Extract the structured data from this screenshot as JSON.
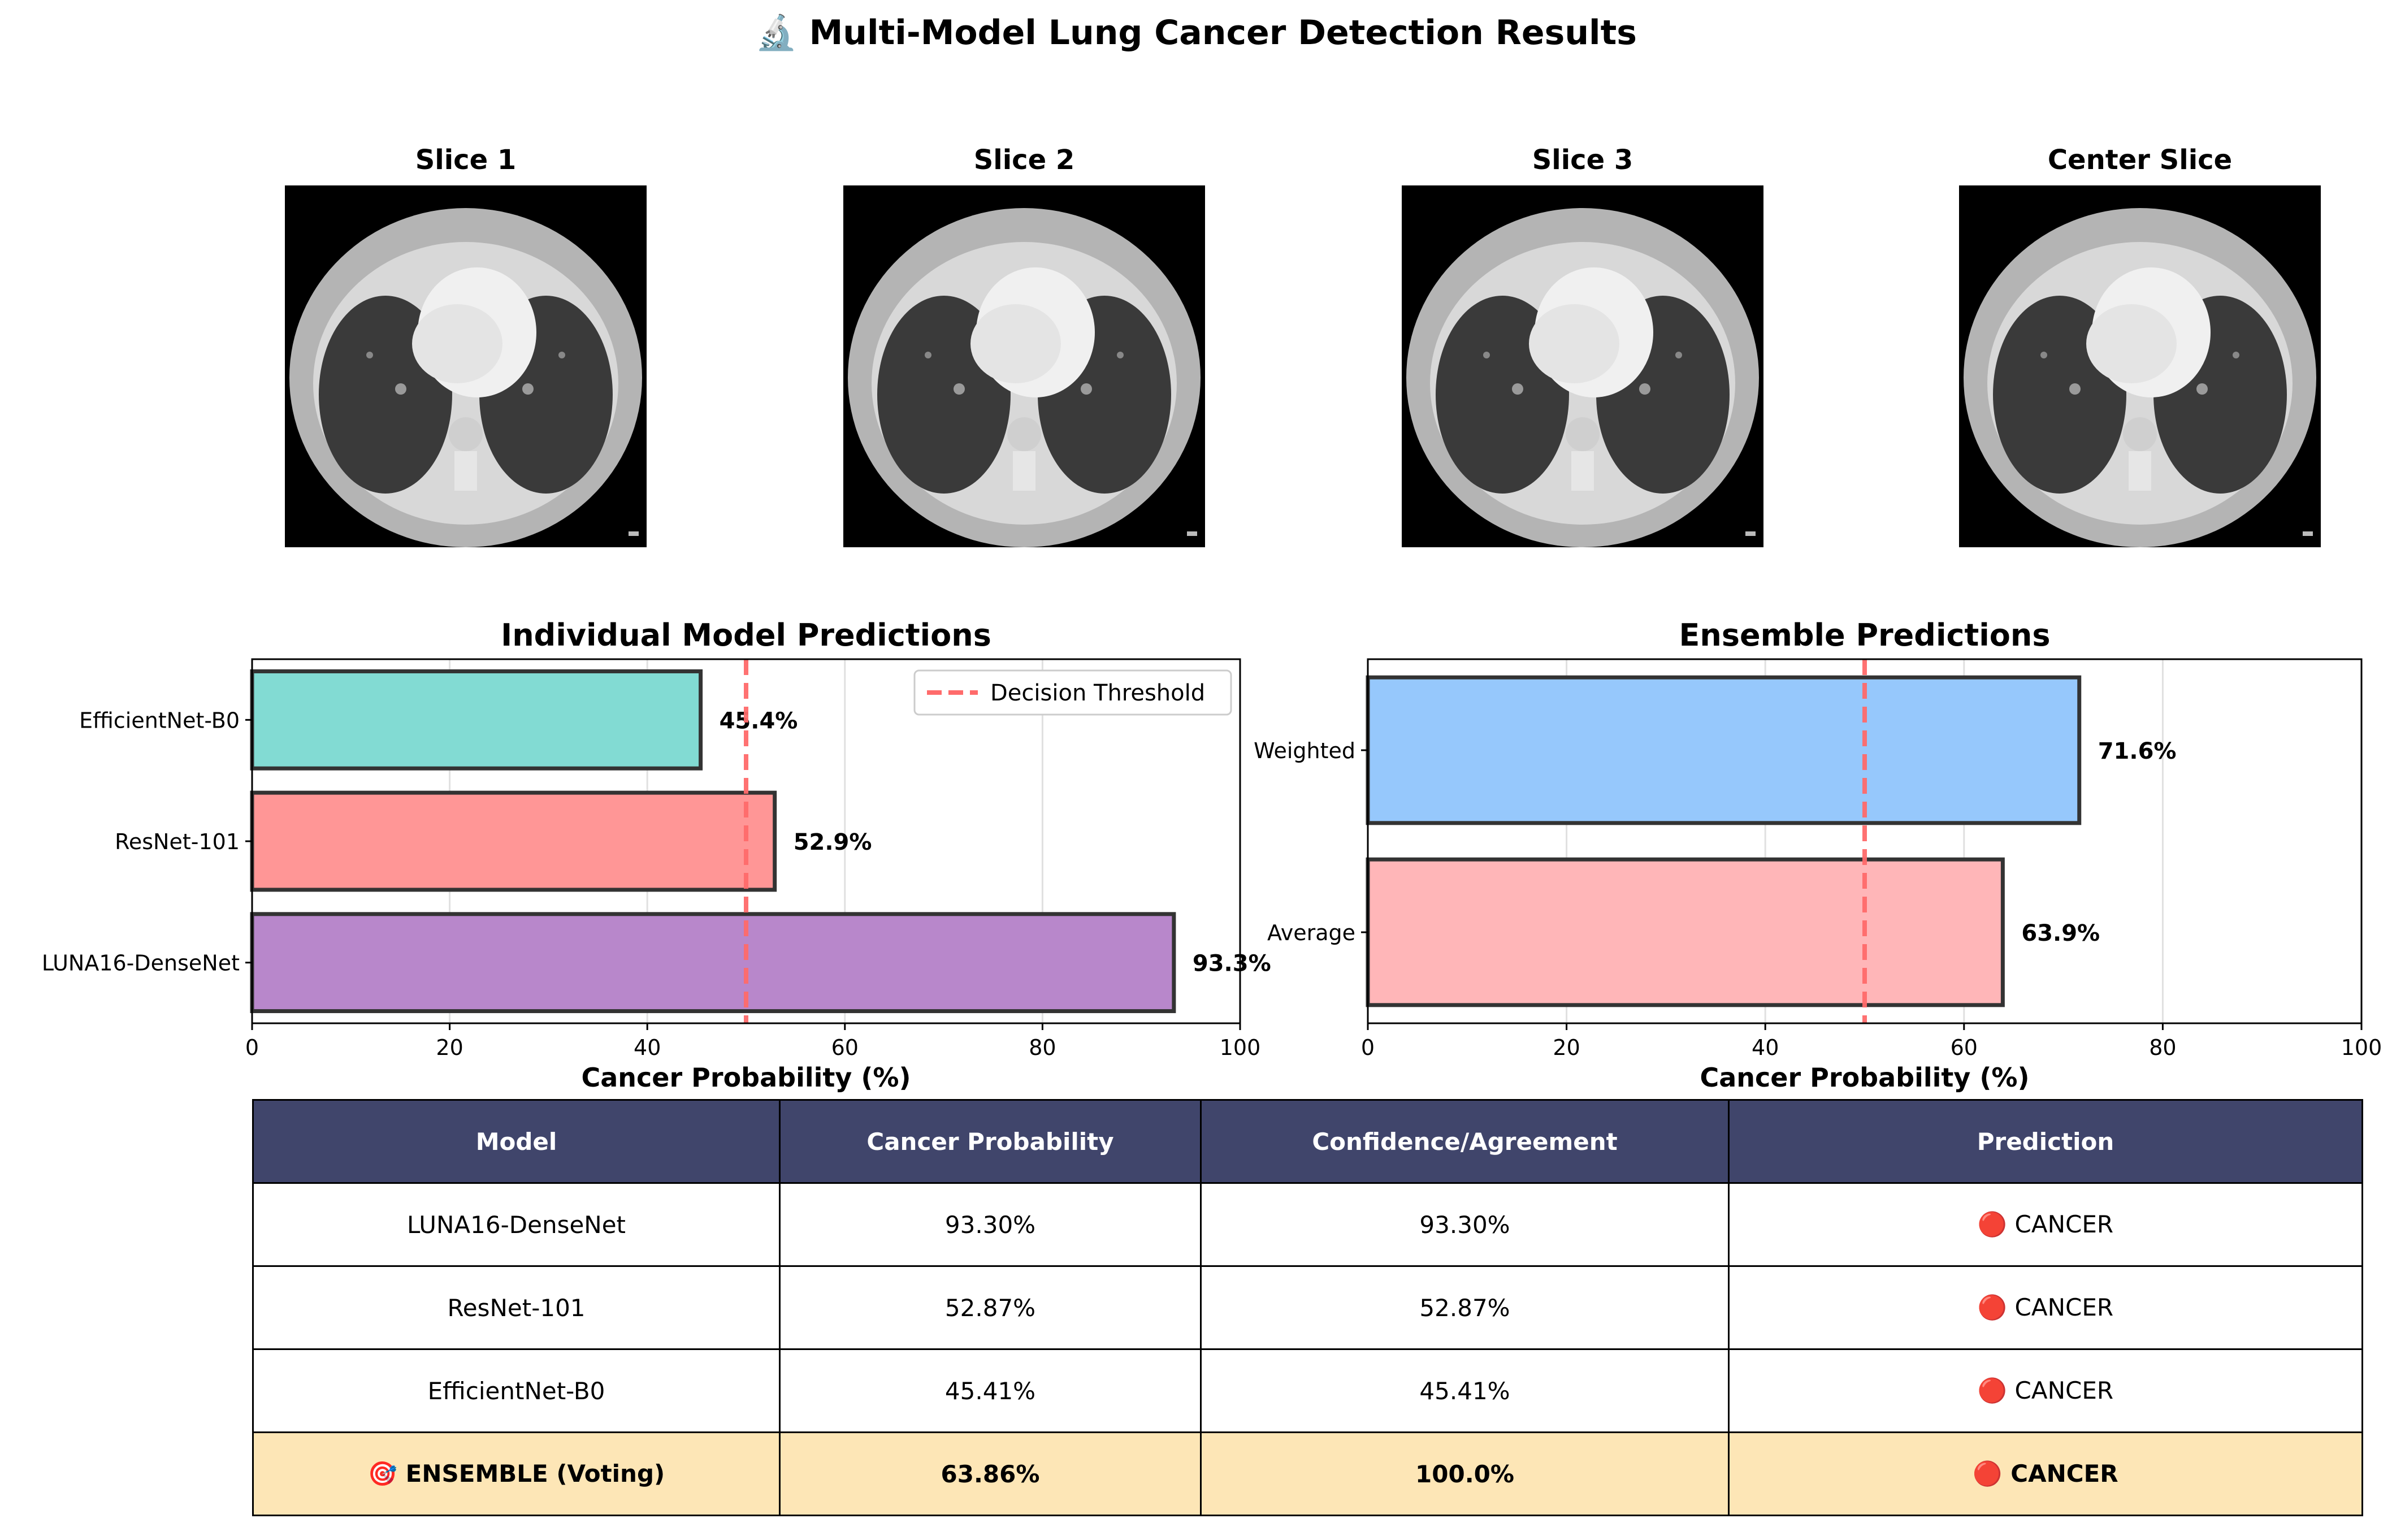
{
  "title": "🔬 Multi-Model Lung Cancer Detection Results",
  "slices": [
    {
      "label": "Slice 1"
    },
    {
      "label": "Slice 2"
    },
    {
      "label": "Slice 3"
    },
    {
      "label": "Center Slice"
    }
  ],
  "colors": {
    "efficientnet": "#82dbd3",
    "resnet": "#ff9696",
    "luna16": "#b887cb",
    "weighted": "#96c8fc",
    "average": "#ffb6b8",
    "threshold": "#ff6b6b",
    "table_header": "#40456b",
    "table_ensemble_row": "#fde6b6"
  },
  "chart_data": [
    {
      "type": "bar",
      "orientation": "horizontal",
      "title": "Individual Model Predictions",
      "xlabel": "Cancer Probability (%)",
      "ylabel": "",
      "categories": [
        "EfficientNet-B0",
        "ResNet-101",
        "LUNA16-DenseNet"
      ],
      "values": [
        45.4,
        52.9,
        93.3
      ],
      "value_labels": [
        "45.4%",
        "52.9%",
        "93.3%"
      ],
      "bar_colors": [
        "#82dbd3",
        "#ff9696",
        "#b887cb"
      ],
      "xlim": [
        0,
        100
      ],
      "xticks": [
        "0",
        "20",
        "40",
        "60",
        "80",
        "100"
      ],
      "threshold": 50,
      "legend": [
        "Decision Threshold"
      ],
      "legend_position": "top-right",
      "grid": true
    },
    {
      "type": "bar",
      "orientation": "horizontal",
      "title": "Ensemble Predictions",
      "xlabel": "Cancer Probability (%)",
      "ylabel": "",
      "categories": [
        "Weighted",
        "Average"
      ],
      "values": [
        71.6,
        63.9
      ],
      "value_labels": [
        "71.6%",
        "63.9%"
      ],
      "bar_colors": [
        "#96c8fc",
        "#ffb6b8"
      ],
      "xlim": [
        0,
        100
      ],
      "xticks": [
        "0",
        "20",
        "40",
        "60",
        "80",
        "100"
      ],
      "threshold": 50,
      "grid": true
    },
    {
      "type": "table",
      "columns": [
        "Model",
        "Cancer Probability",
        "Confidence/Agreement",
        "Prediction"
      ],
      "rows": [
        [
          "LUNA16-DenseNet",
          "93.30%",
          "93.30%",
          "🔴 CANCER"
        ],
        [
          "ResNet-101",
          "52.87%",
          "52.87%",
          "🔴 CANCER"
        ],
        [
          "EfficientNet-B0",
          "45.41%",
          "45.41%",
          "🔴 CANCER"
        ],
        [
          "🎯 ENSEMBLE (Voting)",
          "63.86%",
          "100.0%",
          "🔴 CANCER"
        ]
      ]
    }
  ]
}
